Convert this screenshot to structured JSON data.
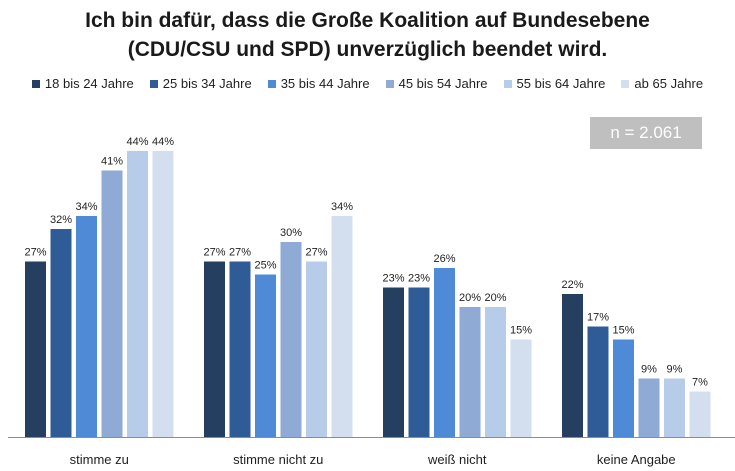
{
  "chart_data": {
    "type": "bar",
    "title_lines": [
      "Ich bin dafür, dass die Große Koalition auf Bundesebene",
      "(CDU/CSU und SPD) unverzüglich beendet wird."
    ],
    "categories": [
      "stimme zu",
      "stimme nicht zu",
      "weiß nicht",
      "keine Angabe"
    ],
    "series": [
      {
        "name": "18 bis 24 Jahre",
        "color": "#243f60",
        "values": [
          27,
          27,
          23,
          22
        ]
      },
      {
        "name": "25 bis 34 Jahre",
        "color": "#2f5c96",
        "values": [
          32,
          27,
          23,
          17
        ]
      },
      {
        "name": "35 bis 44 Jahre",
        "color": "#4f8ad6",
        "values": [
          34,
          25,
          26,
          15
        ]
      },
      {
        "name": "45 bis 54 Jahre",
        "color": "#8eaad5",
        "values": [
          41,
          30,
          20,
          9
        ]
      },
      {
        "name": "55 bis 64 Jahre",
        "color": "#b7cce8",
        "values": [
          44,
          27,
          20,
          9
        ]
      },
      {
        "name": "ab 65 Jahre",
        "color": "#d3dfee",
        "values": [
          44,
          34,
          15,
          7
        ]
      }
    ],
    "value_suffix": "%",
    "annotation": "n = 2.061",
    "legend_position": "top",
    "grid": false
  }
}
